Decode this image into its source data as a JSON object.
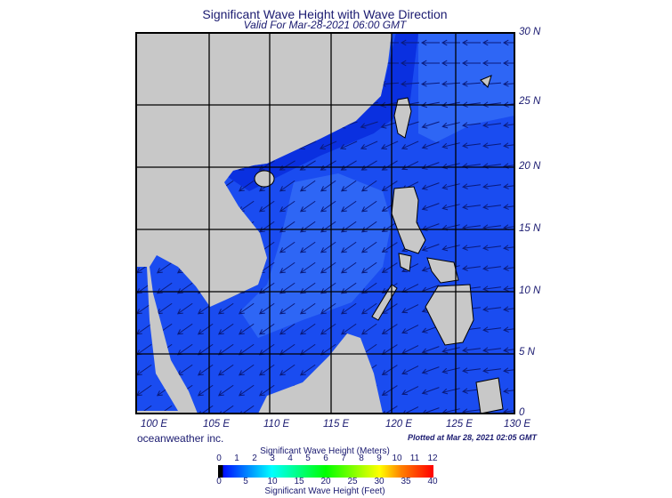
{
  "title": "Significant Wave Height with Wave Direction",
  "subtitle": "Valid For Mar-28-2021 06:00 GMT",
  "credit": "oceanweather inc.",
  "plotted": "Plotted at Mar 28, 2021 02:05 GMT",
  "map": {
    "lon_labels": [
      "100 E",
      "105 E",
      "110 E",
      "115 E",
      "120 E",
      "125 E",
      "130 E"
    ],
    "lat_labels": [
      "30 N",
      "25 N",
      "20 N",
      "15 N",
      "10 N",
      "5 N",
      "0"
    ],
    "colors": {
      "land": "#c8c8c8",
      "sea": "#1a4cf0",
      "sea_light": "#2e66f5",
      "sea_dark": "#0a30e0",
      "arrow": "#0a1a7a"
    }
  },
  "colorbar": {
    "meters_title": "Significant Wave Height (Meters)",
    "feet_title": "Significant Wave Height (Feet)",
    "meters_ticks": [
      "0",
      "1",
      "2",
      "3",
      "4",
      "5",
      "6",
      "7",
      "8",
      "9",
      "10",
      "11",
      "12"
    ],
    "feet_ticks": [
      "0",
      "5",
      "10",
      "15",
      "20",
      "25",
      "30",
      "35",
      "40"
    ]
  }
}
